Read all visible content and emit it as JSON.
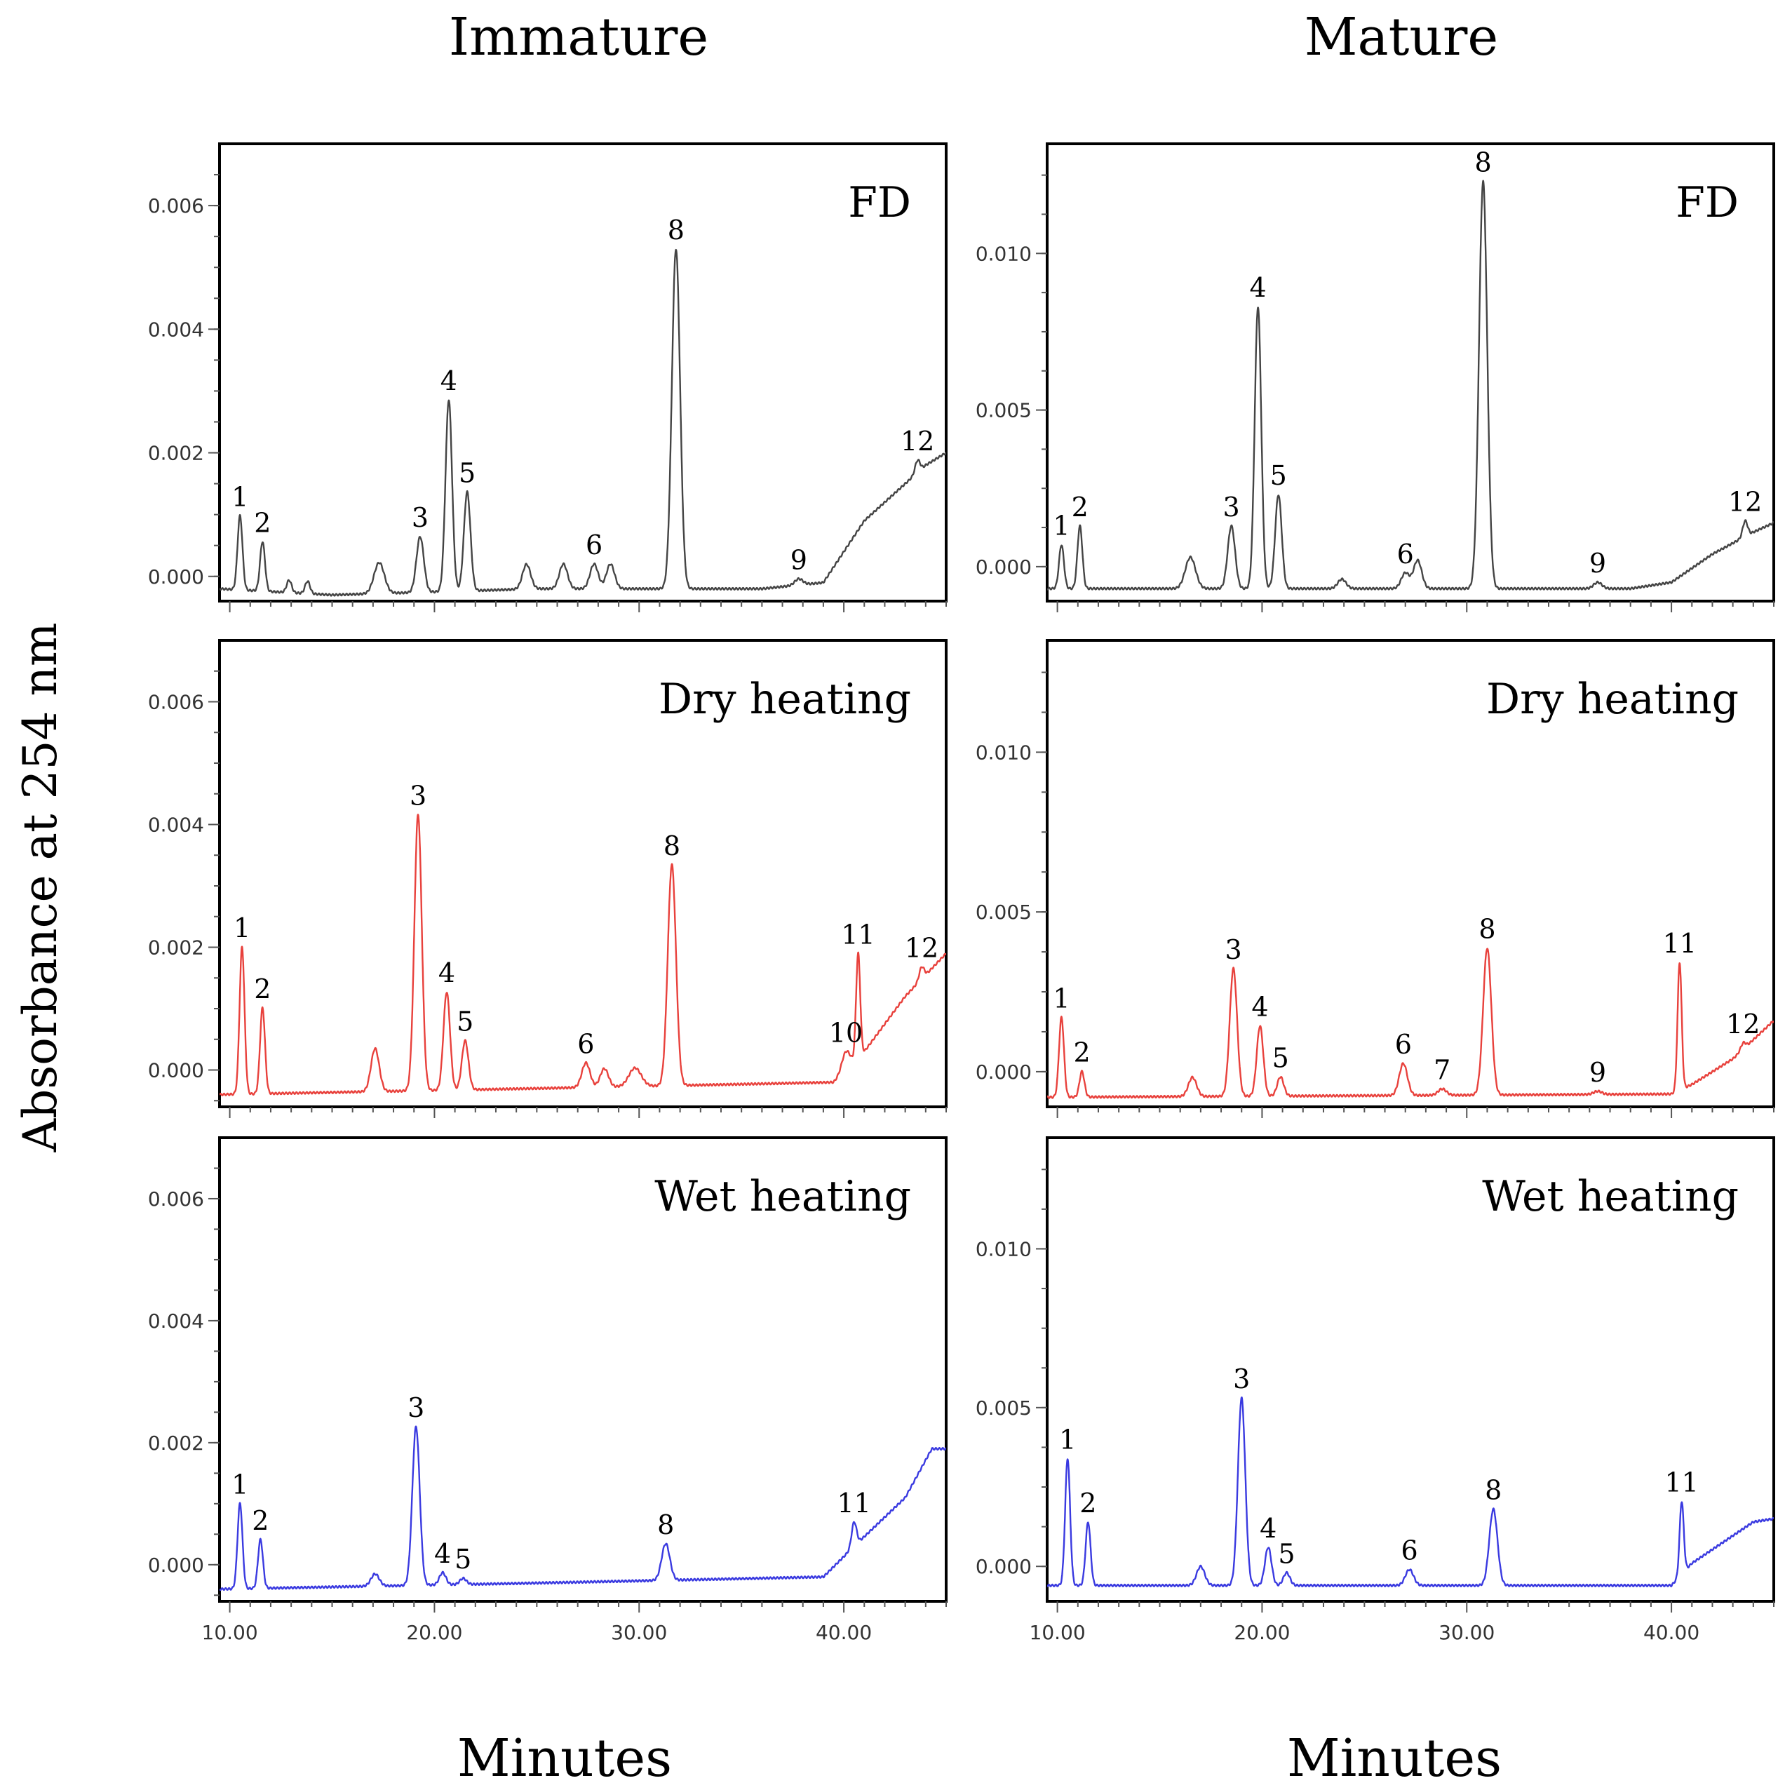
{
  "figure": {
    "y_axis_label": "Absorbance at 254 nm",
    "x_axis_label": "Minutes",
    "columns": [
      "Immature",
      "Mature"
    ],
    "rows": [
      "FD",
      "Dry heating",
      "Wet heating"
    ],
    "colors": {
      "FD": "#444444",
      "Dry heating": "#e8413c",
      "Wet heating": "#3a3ae0"
    }
  },
  "chart_data": [
    {
      "type": "line",
      "title": "FD",
      "column": "Immature",
      "xlabel": "Minutes",
      "ylabel": "Absorbance at 254 nm",
      "xlim": [
        9.5,
        45
      ],
      "ylim": [
        -0.0004,
        0.007
      ],
      "xticks": [
        10,
        20,
        30,
        40
      ],
      "xtick_labels": [
        "10.00",
        "20.00",
        "30.00",
        "40.00"
      ],
      "show_xtick_labels": false,
      "yticks": [
        0,
        0.002,
        0.004,
        0.006
      ],
      "ytick_labels": [
        "0.000",
        "0.002",
        "0.004",
        "0.006"
      ],
      "baseline": [
        [
          9.5,
          -0.0002
        ],
        [
          15,
          -0.0003
        ],
        [
          25,
          -0.0002
        ],
        [
          36,
          -0.0002
        ],
        [
          39,
          -0.0001
        ],
        [
          41,
          0.0009
        ],
        [
          43,
          0.0015
        ],
        [
          44,
          0.0018
        ],
        [
          45,
          0.002
        ]
      ],
      "peaks": [
        {
          "label": "1",
          "rt": 10.5,
          "height": 0.0012,
          "width": 0.12
        },
        {
          "label": "2",
          "rt": 11.6,
          "height": 0.0008,
          "width": 0.12
        },
        {
          "label": "",
          "rt": 12.9,
          "height": 0.0002,
          "width": 0.12
        },
        {
          "label": "",
          "rt": 13.8,
          "height": 0.0002,
          "width": 0.12
        },
        {
          "label": "",
          "rt": 17.3,
          "height": 0.0005,
          "width": 0.25
        },
        {
          "label": "3",
          "rt": 19.3,
          "height": 0.0009,
          "width": 0.18
        },
        {
          "label": "4",
          "rt": 20.7,
          "height": 0.0031,
          "width": 0.16
        },
        {
          "label": "5",
          "rt": 21.6,
          "height": 0.0016,
          "width": 0.16
        },
        {
          "label": "",
          "rt": 24.5,
          "height": 0.0004,
          "width": 0.2
        },
        {
          "label": "",
          "rt": 26.3,
          "height": 0.0004,
          "width": 0.2
        },
        {
          "label": "6",
          "rt": 27.8,
          "height": 0.0004,
          "width": 0.2
        },
        {
          "label": "",
          "rt": 28.6,
          "height": 0.0004,
          "width": 0.2
        },
        {
          "label": "8",
          "rt": 31.8,
          "height": 0.0055,
          "width": 0.2
        },
        {
          "label": "9",
          "rt": 37.8,
          "height": 0.0001,
          "width": 0.2
        },
        {
          "label": "12",
          "rt": 43.6,
          "height": 0.0002,
          "width": 0.12
        }
      ]
    },
    {
      "type": "line",
      "title": "FD",
      "column": "Mature",
      "xlabel": "Minutes",
      "ylabel": "Absorbance at 254 nm",
      "xlim": [
        9.5,
        45
      ],
      "ylim": [
        -0.0011,
        0.0135
      ],
      "xticks": [
        10,
        20,
        30,
        40
      ],
      "xtick_labels": [
        "10.00",
        "20.00",
        "30.00",
        "40.00"
      ],
      "show_xtick_labels": false,
      "yticks": [
        0,
        0.005,
        0.01
      ],
      "ytick_labels": [
        "0.000",
        "0.005",
        "0.010"
      ],
      "baseline": [
        [
          9.5,
          -0.0007
        ],
        [
          20,
          -0.0007
        ],
        [
          38,
          -0.0007
        ],
        [
          40,
          -0.0005
        ],
        [
          42,
          0.0004
        ],
        [
          44,
          0.0011
        ],
        [
          45,
          0.0014
        ]
      ],
      "peaks": [
        {
          "label": "1",
          "rt": 10.2,
          "height": 0.0014,
          "width": 0.12
        },
        {
          "label": "2",
          "rt": 11.1,
          "height": 0.002,
          "width": 0.12
        },
        {
          "label": "",
          "rt": 16.5,
          "height": 0.001,
          "width": 0.25
        },
        {
          "label": "3",
          "rt": 18.5,
          "height": 0.002,
          "width": 0.18
        },
        {
          "label": "4",
          "rt": 19.8,
          "height": 0.009,
          "width": 0.16
        },
        {
          "label": "5",
          "rt": 20.8,
          "height": 0.003,
          "width": 0.16
        },
        {
          "label": "",
          "rt": 23.9,
          "height": 0.0003,
          "width": 0.2
        },
        {
          "label": "6",
          "rt": 27.0,
          "height": 0.0005,
          "width": 0.2
        },
        {
          "label": "",
          "rt": 27.6,
          "height": 0.0009,
          "width": 0.2
        },
        {
          "label": "8",
          "rt": 30.8,
          "height": 0.013,
          "width": 0.2
        },
        {
          "label": "9",
          "rt": 36.4,
          "height": 0.0002,
          "width": 0.2
        },
        {
          "label": "12",
          "rt": 43.6,
          "height": 0.0005,
          "width": 0.12
        }
      ]
    },
    {
      "type": "line",
      "title": "Dry heating",
      "column": "Immature",
      "xlabel": "Minutes",
      "ylabel": "Absorbance at 254 nm",
      "xlim": [
        9.5,
        45
      ],
      "ylim": [
        -0.0006,
        0.007
      ],
      "xticks": [
        10,
        20,
        30,
        40
      ],
      "xtick_labels": [
        "10.00",
        "20.00",
        "30.00",
        "40.00"
      ],
      "show_xtick_labels": false,
      "yticks": [
        0,
        0.002,
        0.004,
        0.006
      ],
      "ytick_labels": [
        "0.000",
        "0.002",
        "0.004",
        "0.006"
      ],
      "baseline": [
        [
          9.5,
          -0.0004
        ],
        [
          25,
          -0.0003
        ],
        [
          39.5,
          -0.0002
        ],
        [
          41,
          0.0003
        ],
        [
          43,
          0.0012
        ],
        [
          45,
          0.0019
        ]
      ],
      "peaks": [
        {
          "label": "1",
          "rt": 10.6,
          "height": 0.0024,
          "width": 0.12
        },
        {
          "label": "2",
          "rt": 11.6,
          "height": 0.0014,
          "width": 0.12
        },
        {
          "label": "",
          "rt": 17.1,
          "height": 0.0007,
          "width": 0.2
        },
        {
          "label": "3",
          "rt": 19.2,
          "height": 0.0045,
          "width": 0.18
        },
        {
          "label": "4",
          "rt": 20.6,
          "height": 0.0016,
          "width": 0.16
        },
        {
          "label": "5",
          "rt": 21.5,
          "height": 0.0008,
          "width": 0.16
        },
        {
          "label": "6",
          "rt": 27.4,
          "height": 0.0004,
          "width": 0.2
        },
        {
          "label": "",
          "rt": 28.3,
          "height": 0.0003,
          "width": 0.2
        },
        {
          "label": "",
          "rt": 29.8,
          "height": 0.0003,
          "width": 0.3
        },
        {
          "label": "8",
          "rt": 31.6,
          "height": 0.0036,
          "width": 0.2
        },
        {
          "label": "10",
          "rt": 40.1,
          "height": 0.0003,
          "width": 0.2
        },
        {
          "label": "11",
          "rt": 40.7,
          "height": 0.0017,
          "width": 0.1
        },
        {
          "label": "12",
          "rt": 43.8,
          "height": 0.0002,
          "width": 0.12
        }
      ]
    },
    {
      "type": "line",
      "title": "Dry heating",
      "column": "Mature",
      "xlabel": "Minutes",
      "ylabel": "Absorbance at 254 nm",
      "xlim": [
        9.5,
        45
      ],
      "ylim": [
        -0.0011,
        0.0135
      ],
      "xticks": [
        10,
        20,
        30,
        40
      ],
      "xtick_labels": [
        "10.00",
        "20.00",
        "30.00",
        "40.00"
      ],
      "show_xtick_labels": false,
      "yticks": [
        0,
        0.005,
        0.01
      ],
      "ytick_labels": [
        "0.000",
        "0.005",
        "0.010"
      ],
      "baseline": [
        [
          9.5,
          -0.0008
        ],
        [
          40,
          -0.0007
        ],
        [
          41,
          -0.0004
        ],
        [
          43,
          0.0004
        ],
        [
          45,
          0.0016
        ]
      ],
      "peaks": [
        {
          "label": "1",
          "rt": 10.2,
          "height": 0.0025,
          "width": 0.12
        },
        {
          "label": "2",
          "rt": 11.2,
          "height": 0.0008,
          "width": 0.12
        },
        {
          "label": "",
          "rt": 16.6,
          "height": 0.0006,
          "width": 0.2
        },
        {
          "label": "3",
          "rt": 18.6,
          "height": 0.004,
          "width": 0.18
        },
        {
          "label": "4",
          "rt": 19.9,
          "height": 0.0022,
          "width": 0.16
        },
        {
          "label": "5",
          "rt": 20.9,
          "height": 0.0006,
          "width": 0.16
        },
        {
          "label": "6",
          "rt": 26.9,
          "height": 0.001,
          "width": 0.2
        },
        {
          "label": "7",
          "rt": 28.8,
          "height": 0.0002,
          "width": 0.2
        },
        {
          "label": "8",
          "rt": 31.0,
          "height": 0.0046,
          "width": 0.2
        },
        {
          "label": "9",
          "rt": 36.4,
          "height": 0.0001,
          "width": 0.2
        },
        {
          "label": "11",
          "rt": 40.4,
          "height": 0.004,
          "width": 0.1
        },
        {
          "label": "12",
          "rt": 43.5,
          "height": 0.0002,
          "width": 0.12
        }
      ]
    },
    {
      "type": "line",
      "title": "Wet heating",
      "column": "Immature",
      "xlabel": "Minutes",
      "ylabel": "Absorbance at 254 nm",
      "xlim": [
        9.5,
        45
      ],
      "ylim": [
        -0.0006,
        0.007
      ],
      "xticks": [
        10,
        20,
        30,
        40
      ],
      "xtick_labels": [
        "10.00",
        "20.00",
        "30.00",
        "40.00"
      ],
      "show_xtick_labels": true,
      "yticks": [
        0,
        0.002,
        0.004,
        0.006
      ],
      "ytick_labels": [
        "0.000",
        "0.002",
        "0.004",
        "0.006"
      ],
      "baseline": [
        [
          9.5,
          -0.0004
        ],
        [
          25,
          -0.0003
        ],
        [
          39,
          -0.0002
        ],
        [
          40.5,
          0.0003
        ],
        [
          43,
          0.0011
        ],
        [
          44.3,
          0.0019
        ],
        [
          45,
          0.0019
        ]
      ],
      "peaks": [
        {
          "label": "1",
          "rt": 10.5,
          "height": 0.0014,
          "width": 0.12
        },
        {
          "label": "2",
          "rt": 11.5,
          "height": 0.0008,
          "width": 0.12
        },
        {
          "label": "",
          "rt": 17.1,
          "height": 0.0002,
          "width": 0.2
        },
        {
          "label": "3",
          "rt": 19.1,
          "height": 0.0026,
          "width": 0.18
        },
        {
          "label": "4",
          "rt": 20.4,
          "height": 0.0002,
          "width": 0.16
        },
        {
          "label": "5",
          "rt": 21.4,
          "height": 0.0001,
          "width": 0.16
        },
        {
          "label": "8",
          "rt": 31.3,
          "height": 0.0006,
          "width": 0.2
        },
        {
          "label": "11",
          "rt": 40.5,
          "height": 0.0004,
          "width": 0.12
        }
      ]
    },
    {
      "type": "line",
      "title": "Wet heating",
      "column": "Mature",
      "xlabel": "Minutes",
      "ylabel": "Absorbance at 254 nm",
      "xlim": [
        9.5,
        45
      ],
      "ylim": [
        -0.0011,
        0.0135
      ],
      "xticks": [
        10,
        20,
        30,
        40
      ],
      "xtick_labels": [
        "10.00",
        "20.00",
        "30.00",
        "40.00"
      ],
      "show_xtick_labels": true,
      "yticks": [
        0,
        0.005,
        0.01
      ],
      "ytick_labels": [
        "0.000",
        "0.005",
        "0.010"
      ],
      "baseline": [
        [
          9.5,
          -0.0006
        ],
        [
          40,
          -0.0006
        ],
        [
          41,
          0.0001
        ],
        [
          44,
          0.0014
        ],
        [
          45,
          0.0015
        ]
      ],
      "peaks": [
        {
          "label": "1",
          "rt": 10.5,
          "height": 0.004,
          "width": 0.12
        },
        {
          "label": "2",
          "rt": 11.5,
          "height": 0.002,
          "width": 0.12
        },
        {
          "label": "",
          "rt": 17.0,
          "height": 0.0006,
          "width": 0.2
        },
        {
          "label": "3",
          "rt": 19.0,
          "height": 0.0059,
          "width": 0.18
        },
        {
          "label": "4",
          "rt": 20.3,
          "height": 0.0012,
          "width": 0.16
        },
        {
          "label": "5",
          "rt": 21.2,
          "height": 0.0004,
          "width": 0.16
        },
        {
          "label": "6",
          "rt": 27.2,
          "height": 0.0005,
          "width": 0.2
        },
        {
          "label": "8",
          "rt": 31.3,
          "height": 0.0024,
          "width": 0.2
        },
        {
          "label": "11",
          "rt": 40.5,
          "height": 0.0023,
          "width": 0.1
        }
      ]
    }
  ]
}
